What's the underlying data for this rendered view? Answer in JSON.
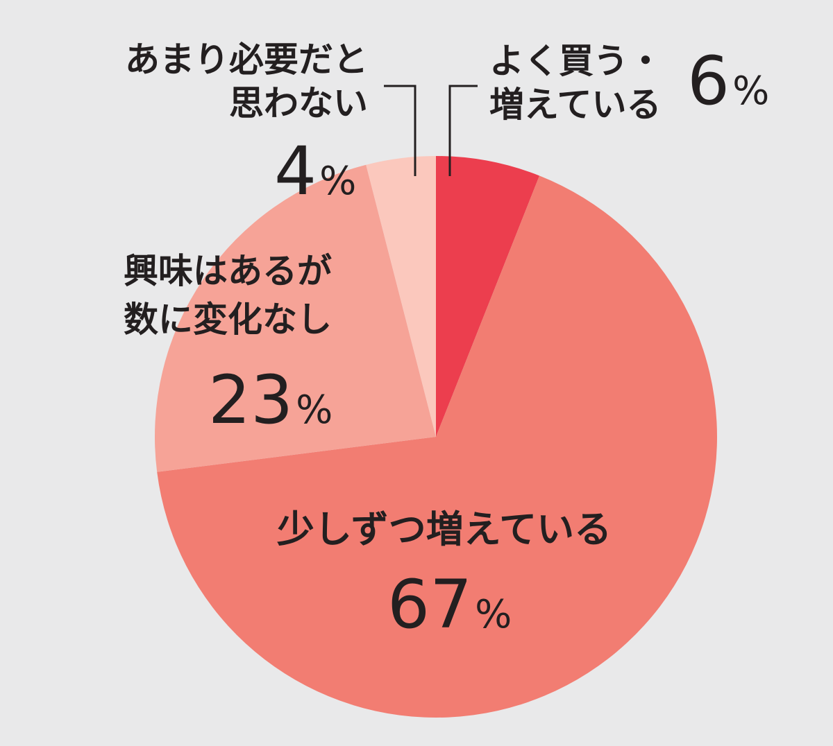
{
  "chart_data": {
    "type": "pie",
    "start_angle_deg": 0,
    "direction": "clockwise",
    "slices": [
      {
        "label_lines": [
          "よく買う・",
          "増えている"
        ],
        "value": 6,
        "display": "6",
        "unit": "%",
        "color": "#ec3e4e"
      },
      {
        "label_lines": [
          "少しずつ増えている"
        ],
        "value": 67,
        "display": "67",
        "unit": "%",
        "color": "#f27d72"
      },
      {
        "label_lines": [
          "興味はあるが",
          "数に変化なし"
        ],
        "value": 23,
        "display": "23",
        "unit": "%",
        "color": "#f6a397"
      },
      {
        "label_lines": [
          "あまり必要だと",
          "思わない"
        ],
        "value": 4,
        "display": "4",
        "unit": "%",
        "color": "#fbc8bd"
      }
    ]
  }
}
